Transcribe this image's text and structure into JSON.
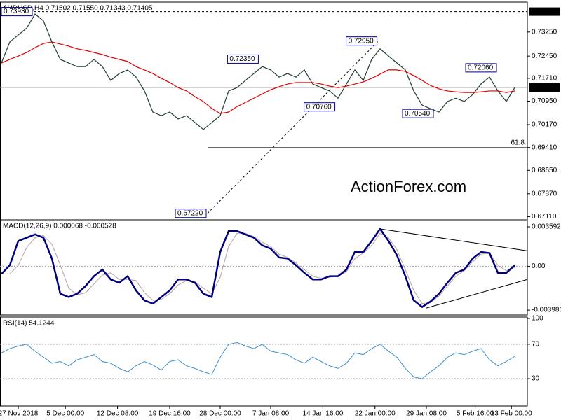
{
  "watermark": "ActionForex.com",
  "chart_data": [
    {
      "type": "line",
      "title": "AUDUSD,H4  0.71502 0.71550 0.71343 0.71405",
      "x": [
        0,
        1,
        2,
        3,
        4,
        5,
        6,
        7,
        8,
        9,
        10,
        11,
        12,
        13,
        14,
        15,
        16,
        17,
        18,
        19,
        20,
        21,
        22,
        23,
        24,
        25,
        26,
        27,
        28,
        29,
        30,
        31,
        32,
        33,
        34,
        35,
        36,
        37,
        38,
        39,
        40,
        41,
        42,
        43,
        44,
        45,
        46,
        47,
        48,
        49,
        50,
        51,
        52,
        53,
        54,
        55,
        56,
        57,
        58,
        59,
        60,
        61
      ],
      "series": [
        {
          "color": "#1f3f2f",
          "values": [
            0.7222,
            0.7292,
            0.7315,
            0.7338,
            0.7385,
            0.7362,
            0.7292,
            0.7234,
            0.7222,
            0.721,
            0.721,
            0.7234,
            0.721,
            0.7164,
            0.7187,
            0.7199,
            0.7175,
            0.7129,
            0.7059,
            0.7047,
            0.7059,
            0.7036,
            0.7047,
            0.7024,
            0.7001,
            0.7024,
            0.7047,
            0.7129,
            0.714,
            0.7164,
            0.7187,
            0.721,
            0.7199,
            0.7175,
            0.7187,
            0.7175,
            0.7199,
            0.7152,
            0.714,
            0.7129,
            0.7105,
            0.7152,
            0.7199,
            0.7164,
            0.7234,
            0.7269,
            0.7245,
            0.7222,
            0.7199,
            0.7129,
            0.7082,
            0.707,
            0.7059,
            0.7094,
            0.7105,
            0.7094,
            0.7117,
            0.7152,
            0.7175,
            0.7129,
            0.7094,
            0.714
          ]
        },
        {
          "color": "#e00000",
          "values": [
            0.7222,
            0.7234,
            0.7245,
            0.7257,
            0.7273,
            0.7287,
            0.7292,
            0.7285,
            0.7278,
            0.7269,
            0.7264,
            0.7257,
            0.725,
            0.7241,
            0.7234,
            0.7227,
            0.721,
            0.7199,
            0.7187,
            0.7171,
            0.7157,
            0.714,
            0.7129,
            0.711,
            0.7094,
            0.7071,
            0.7054,
            0.7059,
            0.7077,
            0.7091,
            0.7105,
            0.7119,
            0.7133,
            0.7143,
            0.7152,
            0.7157,
            0.7157,
            0.7157,
            0.7152,
            0.7145,
            0.714,
            0.7145,
            0.7152,
            0.7159,
            0.7171,
            0.7185,
            0.7199,
            0.7199,
            0.7194,
            0.718,
            0.7164,
            0.7147,
            0.7136,
            0.7129,
            0.7126,
            0.7124,
            0.7124,
            0.7126,
            0.7129,
            0.7129,
            0.7124,
            0.7129
          ]
        }
      ],
      "ylim": [
        0.6705,
        0.742
      ],
      "yticks": [
        {
          "value": 0.7325,
          "label": "0.73250"
        },
        {
          "value": 0.7245,
          "label": "0.72450"
        },
        {
          "value": 0.7171,
          "label": "0.71710"
        },
        {
          "value": 0.7095,
          "label": "0.70950"
        },
        {
          "value": 0.7017,
          "label": "0.70170"
        },
        {
          "value": 0.6941,
          "label": "0.69410"
        },
        {
          "value": 0.6865,
          "label": "0.68650"
        },
        {
          "value": 0.6787,
          "label": "0.67870"
        },
        {
          "value": 0.6711,
          "label": "0.67110"
        }
      ],
      "grid": false,
      "levels": [
        {
          "value": 0.7393,
          "label": "0.73930",
          "dashed": true
        },
        {
          "value": 0.71405,
          "label": "0.71405",
          "dashed": false
        }
      ],
      "annotations": [
        {
          "x": 3.8,
          "value": 0.7393,
          "label": "0.73930"
        },
        {
          "x": 30.7,
          "value": 0.7235,
          "label": "0.72350"
        },
        {
          "x": 44.8,
          "value": 0.7295,
          "label": "0.72950"
        },
        {
          "x": 39.8,
          "value": 0.7076,
          "label": "0.70760"
        },
        {
          "x": 51.5,
          "value": 0.7054,
          "label": "0.70540"
        },
        {
          "x": 59,
          "value": 0.7206,
          "label": "0.72060"
        },
        {
          "x": 24.5,
          "value": 0.6722,
          "label": "0.67220"
        }
      ],
      "fib": {
        "level": 61.8,
        "price": 0.6941,
        "x": 24.5
      },
      "trendlines": [
        {
          "x": [
            24.5,
            44.8
          ],
          "y": [
            0.6722,
            0.7295
          ],
          "dashed": true
        }
      ]
    },
    {
      "type": "line",
      "title": "MACD(12,26,9) 0.000068 -0.000528",
      "x": [
        0,
        1,
        2,
        3,
        4,
        5,
        6,
        7,
        8,
        9,
        10,
        11,
        12,
        13,
        14,
        15,
        16,
        17,
        18,
        19,
        20,
        21,
        22,
        23,
        24,
        25,
        26,
        27,
        28,
        29,
        30,
        31,
        32,
        33,
        34,
        35,
        36,
        37,
        38,
        39,
        40,
        41,
        42,
        43,
        44,
        45,
        46,
        47,
        48,
        49,
        50,
        51,
        52,
        53,
        54,
        55,
        56,
        57,
        58,
        59,
        60,
        61
      ],
      "series": [
        {
          "color": "#b8a0a0",
          "width": 1,
          "values": [
            -0.0007,
            -0.0007,
            0.0001,
            0.0017,
            0.0026,
            0.0028,
            0.002,
            0.0001,
            -0.002,
            -0.0026,
            -0.0024,
            -0.0016,
            -0.0008,
            -0.0006,
            -0.0012,
            -0.0012,
            -0.0013,
            -0.0024,
            -0.0031,
            -0.003,
            -0.0025,
            -0.0017,
            -0.0013,
            -0.0014,
            -0.002,
            -0.0025,
            -0.001,
            0.0018,
            0.003,
            0.003,
            0.0027,
            0.0022,
            0.0018,
            0.0011,
            0.0008,
            0.0003,
            -0.0003,
            -0.0009,
            -0.0011,
            -0.001,
            -0.0009,
            -0.0005,
            0.0007,
            0.0012,
            0.0019,
            0.003,
            0.0026,
            0.0015,
            -0.0003,
            -0.0022,
            -0.0034,
            -0.0033,
            -0.0027,
            -0.0018,
            -0.0009,
            -0.0004,
            0.0004,
            0.0011,
            0.0012,
            0.0001,
            -0.0004,
            -0.0001
          ]
        },
        {
          "color": "#000080",
          "width": 2.5,
          "values": [
            -0.0007,
            0.0001,
            0.0023,
            0.0026,
            0.0029,
            0.0026,
            0.0007,
            -0.0025,
            -0.0028,
            -0.0025,
            -0.0018,
            -0.0009,
            -0.0003,
            -0.0012,
            -0.0015,
            -0.0009,
            -0.0022,
            -0.0031,
            -0.0034,
            -0.0028,
            -0.0022,
            -0.0012,
            -0.0012,
            -0.0015,
            -0.0025,
            -0.0028,
            0.0013,
            0.0032,
            0.0032,
            0.0029,
            0.0026,
            0.0019,
            0.0016,
            0.0008,
            0.0007,
            0.0001,
            -0.0006,
            -0.0012,
            -0.0012,
            -0.0009,
            -0.0009,
            -0.0003,
            0.0013,
            0.0013,
            0.0023,
            0.0034,
            0.0023,
            0.001,
            -0.0009,
            -0.0031,
            -0.0037,
            -0.0032,
            -0.0025,
            -0.0015,
            -0.0006,
            -0.0003,
            0.0007,
            0.0013,
            0.0012,
            -0.0006,
            -0.0006,
            0.0001
          ]
        }
      ],
      "ylim": [
        -0.0043,
        0.0041
      ],
      "yticks": [
        0.003592,
        {
          "value": 0,
          "label": "0.00"
        },
        -0.003986
      ],
      "grid": true,
      "grid_values": [
        0
      ],
      "trendlines": [
        {
          "x": [
            45,
            62.5
          ],
          "y": [
            0.0034,
            0.0014
          ],
          "dashed": false
        },
        {
          "x": [
            50.5,
            62.5
          ],
          "y": [
            -0.0038,
            -0.0012
          ],
          "dashed": false
        }
      ]
    },
    {
      "type": "line",
      "title": "RSI(14) 54.1244",
      "x": [
        0,
        1,
        2,
        3,
        4,
        5,
        6,
        7,
        8,
        9,
        10,
        11,
        12,
        13,
        14,
        15,
        16,
        17,
        18,
        19,
        20,
        21,
        22,
        23,
        24,
        25,
        26,
        27,
        28,
        29,
        30,
        31,
        32,
        33,
        34,
        35,
        36,
        37,
        38,
        39,
        40,
        41,
        42,
        43,
        44,
        45,
        46,
        47,
        48,
        49,
        50,
        51,
        52,
        53,
        54,
        55,
        56,
        57,
        58,
        59,
        60,
        61
      ],
      "series": [
        {
          "color": "#3a8fd0",
          "width": 1,
          "values": [
            60,
            65,
            68,
            70,
            62,
            55,
            48,
            50,
            45,
            52,
            55,
            58,
            50,
            48,
            42,
            38,
            45,
            50,
            46,
            40,
            50,
            52,
            45,
            42,
            38,
            35,
            55,
            70,
            72,
            68,
            65,
            70,
            62,
            60,
            58,
            52,
            48,
            55,
            50,
            45,
            42,
            48,
            60,
            58,
            65,
            70,
            62,
            55,
            42,
            32,
            30,
            38,
            45,
            55,
            60,
            58,
            62,
            65,
            52,
            45,
            50,
            56
          ]
        }
      ],
      "ylim": [
        0,
        100
      ],
      "yticks": [
        100,
        70,
        30
      ],
      "grid": true,
      "grid_values": [
        70,
        30
      ],
      "xticks": [
        {
          "value": 2,
          "label": "27 Nov 2018"
        },
        {
          "value": 7.6,
          "label": "5 Dec 00:00"
        },
        {
          "value": 13.8,
          "label": "12 Dec 08:00"
        },
        {
          "value": 20,
          "label": "19 Dec 16:00"
        },
        {
          "value": 26,
          "label": "28 Dec 00:00"
        },
        {
          "value": 32,
          "label": "7 Jan 08:00"
        },
        {
          "value": 38.2,
          "label": "14 Jan 16:00"
        },
        {
          "value": 44.4,
          "label": "22 Jan 00:00"
        },
        {
          "value": 50.5,
          "label": "29 Jan 08:00"
        },
        {
          "value": 56.3,
          "label": "5 Feb 16:00"
        },
        {
          "value": 60.6,
          "label": "13 Feb 00:00"
        }
      ]
    }
  ]
}
